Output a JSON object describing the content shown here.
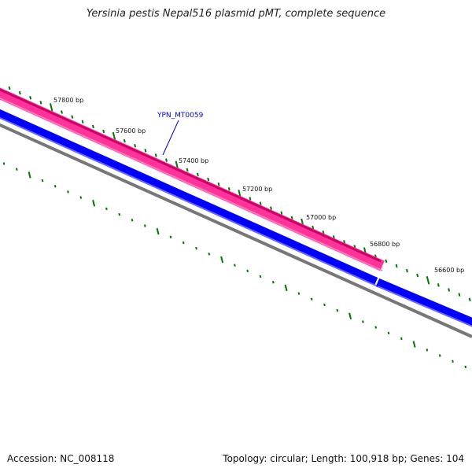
{
  "title": "Yersinia pestis Nepal516 plasmid pMT, complete sequence",
  "accession_text": "Accession: NC_008118",
  "summary_text": "Topology: circular; Length: 100,918 bp; Genes: 104",
  "gene_label": "YPN_MT0059",
  "ticks": [
    "57800 bp",
    "57600 bp",
    "57400 bp",
    "57200 bp",
    "57000 bp",
    "56800 bp",
    "56600 bp"
  ],
  "colors": {
    "forward_feature": "#ff3399",
    "forward_feature_dark": "#cc0066",
    "reverse_feature": "#0000ff",
    "reverse_feature_light": "#6666ff",
    "backbone": "#777777",
    "tick": "#007700",
    "gene_label": "#0000cc"
  }
}
